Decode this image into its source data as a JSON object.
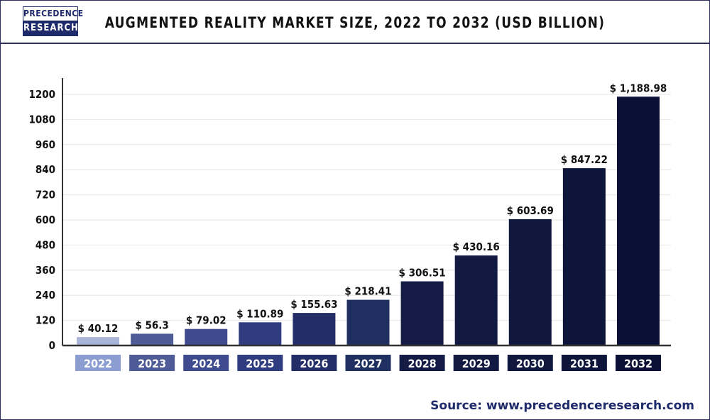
{
  "logo": {
    "line1": "PRECEDENCE",
    "line2": "RESEARCH"
  },
  "source": "Source: www.precedenceresearch.com",
  "chart_data": {
    "type": "bar",
    "title": "AUGMENTED REALITY MARKET SIZE, 2022 TO 2032 (USD BILLION)",
    "xlabel": "",
    "ylabel": "",
    "categories": [
      "2022",
      "2023",
      "2024",
      "2025",
      "2026",
      "2027",
      "2028",
      "2029",
      "2030",
      "2031",
      "2032"
    ],
    "values": [
      40.12,
      56.3,
      79.02,
      110.89,
      155.63,
      218.41,
      306.51,
      430.16,
      603.69,
      847.22,
      1188.98
    ],
    "data_labels": [
      "$ 40.12",
      "$ 56.3",
      "$  79.02",
      "$  110.89",
      "$ 155.63",
      "$ 218.41",
      "$ 306.51",
      "$ 430.16",
      "$ 603.69",
      "$ 847.22",
      "$ 1,188.98"
    ],
    "ylim": [
      0,
      1200
    ],
    "yticks": [
      0,
      120,
      240,
      360,
      480,
      600,
      720,
      840,
      960,
      1080,
      1200
    ],
    "grid": true,
    "bar_colors": [
      "#aab4d8",
      "#4f5b96",
      "#3e4b8e",
      "#303c80",
      "#232d68",
      "#1f2f60",
      "#141c46",
      "#121a42",
      "#10183e",
      "#0e153a",
      "#0b1136"
    ],
    "label_box_colors": [
      "#8c9dd2",
      "#4f5b96",
      "#3e4b8e",
      "#303c80",
      "#232d68",
      "#1f2f60",
      "#141c46",
      "#121a42",
      "#10183e",
      "#0e153a",
      "#0b1136"
    ]
  }
}
